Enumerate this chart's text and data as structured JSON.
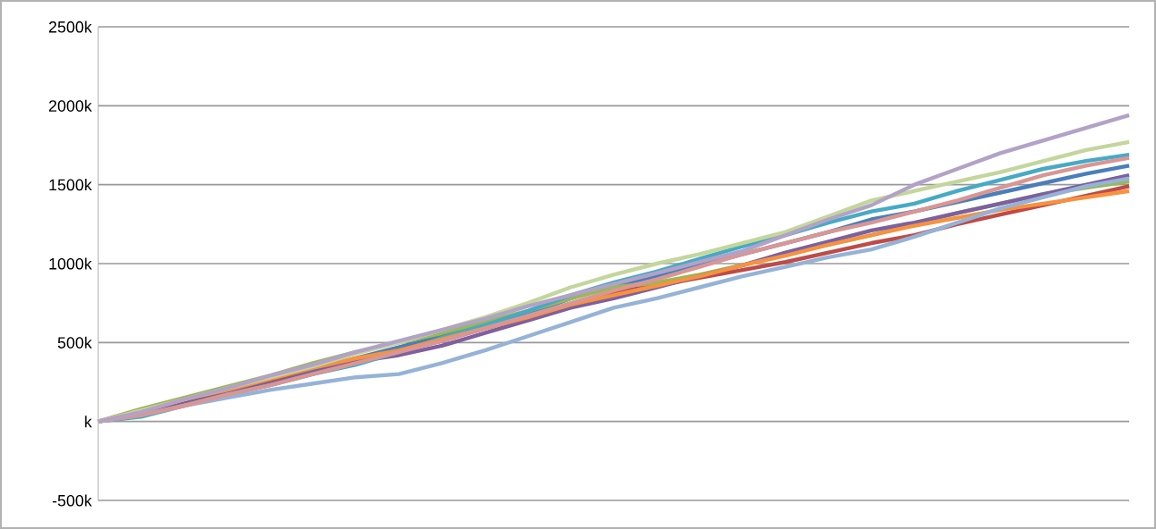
{
  "chart_data": {
    "type": "line",
    "categories": [
      null,
      null,
      null,
      null,
      null,
      null,
      null,
      null,
      null,
      null,
      null,
      null,
      null,
      null,
      null,
      null,
      null,
      null,
      null,
      null,
      null,
      null,
      null,
      null,
      null
    ],
    "ylim": [
      -500,
      2500
    ],
    "yticks": [
      {
        "value": -500,
        "label": "-500k"
      },
      {
        "value": 0,
        "label": "k"
      },
      {
        "value": 500,
        "label": "500k"
      },
      {
        "value": 1000,
        "label": "1000k"
      },
      {
        "value": 1500,
        "label": "1500k"
      },
      {
        "value": 2000,
        "label": "2000k"
      },
      {
        "value": 2500,
        "label": "2500k"
      }
    ],
    "grid": "y",
    "tick_labels": "y",
    "marker": "none",
    "line_style": "solid",
    "series": [
      {
        "color": "#4a7ebb",
        "values": [
          0,
          60,
          130,
          200,
          270,
          330,
          400,
          470,
          540,
          610,
          680,
          780,
          860,
          920,
          990,
          1060,
          1130,
          1200,
          1280,
          1330,
          1390,
          1450,
          1510,
          1570,
          1620
        ]
      },
      {
        "color": "#be4b48",
        "values": [
          0,
          50,
          120,
          190,
          250,
          310,
          380,
          450,
          510,
          590,
          660,
          740,
          820,
          860,
          910,
          960,
          1010,
          1070,
          1130,
          1180,
          1250,
          1310,
          1370,
          1430,
          1490
        ]
      },
      {
        "color": "#98b954",
        "values": [
          0,
          80,
          150,
          220,
          290,
          370,
          440,
          500,
          560,
          630,
          700,
          780,
          850,
          880,
          930,
          990,
          1060,
          1120,
          1180,
          1250,
          1320,
          1380,
          1440,
          1480,
          1520
        ]
      },
      {
        "color": "#7d60a0",
        "values": [
          0,
          40,
          110,
          180,
          240,
          310,
          380,
          420,
          480,
          560,
          640,
          720,
          780,
          850,
          920,
          990,
          1070,
          1140,
          1210,
          1260,
          1320,
          1380,
          1440,
          1500,
          1560
        ]
      },
      {
        "color": "#46aac5",
        "values": [
          0,
          30,
          100,
          170,
          230,
          300,
          360,
          440,
          530,
          610,
          700,
          800,
          880,
          950,
          1030,
          1110,
          1180,
          1260,
          1330,
          1380,
          1460,
          1530,
          1600,
          1650,
          1690
        ]
      },
      {
        "color": "#f69240",
        "values": [
          0,
          70,
          140,
          200,
          270,
          340,
          400,
          450,
          520,
          590,
          660,
          740,
          800,
          860,
          920,
          990,
          1050,
          1120,
          1180,
          1240,
          1290,
          1340,
          1380,
          1420,
          1460
        ]
      },
      {
        "color": "#95b3d7",
        "values": [
          0,
          40,
          100,
          150,
          200,
          240,
          280,
          300,
          370,
          450,
          540,
          630,
          720,
          780,
          850,
          920,
          980,
          1040,
          1090,
          1170,
          1260,
          1350,
          1420,
          1490,
          1540
        ]
      },
      {
        "color": "#d99694",
        "values": [
          0,
          40,
          100,
          170,
          230,
          300,
          370,
          440,
          510,
          590,
          670,
          750,
          830,
          900,
          980,
          1060,
          1130,
          1200,
          1260,
          1330,
          1400,
          1480,
          1560,
          1620,
          1670
        ]
      },
      {
        "color": "#c3d69b",
        "values": [
          0,
          70,
          140,
          210,
          280,
          350,
          430,
          500,
          580,
          660,
          750,
          850,
          930,
          1000,
          1060,
          1130,
          1200,
          1300,
          1400,
          1460,
          1520,
          1580,
          1650,
          1720,
          1770
        ]
      },
      {
        "color": "#b3a2c7",
        "values": [
          0,
          60,
          140,
          210,
          290,
          360,
          440,
          510,
          580,
          650,
          730,
          800,
          870,
          940,
          1010,
          1080,
          1180,
          1280,
          1370,
          1500,
          1600,
          1700,
          1780,
          1860,
          1940
        ]
      }
    ]
  }
}
